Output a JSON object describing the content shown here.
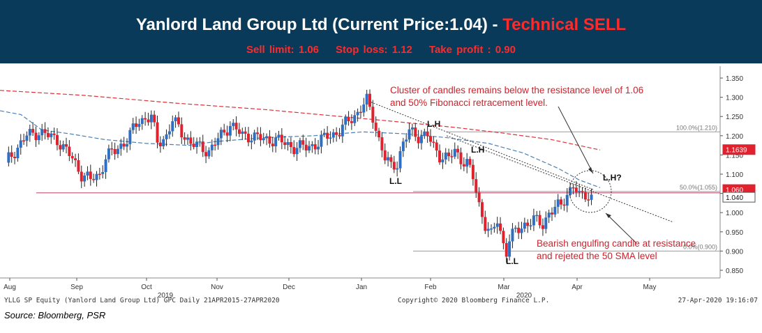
{
  "header": {
    "title_prefix": "Yanlord Land Group Ltd (Current Price:1.04) - ",
    "title_signal": "Technical SELL",
    "sell_limit": "Sell limit: 1.06",
    "stop_loss": "Stop loss: 1.12",
    "take_profit": "Take profit : 0.90"
  },
  "source": "Source: Bloomberg, PSR",
  "colors": {
    "header_bg": "#0a3a5a",
    "signal_red": "#ff2a2a",
    "up_candle": "#2e6fc4",
    "down_candle": "#e0212e",
    "sma_50": "#4a7fb5",
    "sma_200": "#e0303a",
    "annotation": "#d0202a"
  },
  "chart_data": {
    "type": "candlestick",
    "ylim": [
      0.83,
      1.37
    ],
    "yticks": [
      "1.350",
      "1.300",
      "1.250",
      "1.200",
      "1.150",
      "1.100",
      "1.050",
      "1.000",
      "0.950",
      "0.900",
      "0.850"
    ],
    "x_tick_labels": [
      "Aug",
      "Sep",
      "Oct",
      "Nov",
      "Dec",
      "Jan",
      "Feb",
      "Mar",
      "Apr",
      "May"
    ],
    "year_labels": [
      "2019",
      "2020"
    ],
    "price_boxes": [
      {
        "label": "1.1639",
        "value": 1.1639,
        "color": "#e0212e"
      },
      {
        "label": "1.060",
        "value": 1.06,
        "color": "#e0212e"
      },
      {
        "label": "1.040",
        "value": 1.04,
        "color": "#ffffff"
      }
    ],
    "fib_levels": [
      {
        "label": "100.0%(1.210)",
        "value": 1.21
      },
      {
        "label": "50.0%(1.055)",
        "value": 1.055
      },
      {
        "label": "0.0%(0.900)",
        "value": 0.9
      }
    ],
    "support_level": 1.055,
    "annotations": [
      {
        "text": "Cluster of candles remains below the resistance level of 1.06"
      },
      {
        "text": "and 50% Fibonacci retracement level."
      },
      {
        "text": "Bearish engulfing candle at resistance"
      },
      {
        "text": "and rejeted the 50 SMA level"
      }
    ],
    "pattern_labels": [
      "L.H",
      "L.H",
      "L.H?",
      "L.L",
      "L.L"
    ],
    "footer": {
      "left": "YLLG SP Equity (Yanlord Land Group Ltd) GPC  Daily 21APR2015-27APR2020",
      "center": "Copyright© 2020 Bloomberg Finance L.P.",
      "right": "27-Apr-2020 19:16:07"
    },
    "price_path": [
      [
        0,
        1.13
      ],
      [
        7,
        1.2
      ],
      [
        11,
        1.21
      ],
      [
        17,
        1.19
      ],
      [
        22,
        1.14
      ],
      [
        25,
        1.1
      ],
      [
        28,
        1.085
      ],
      [
        31,
        1.1
      ],
      [
        33,
        1.145
      ],
      [
        36,
        1.16
      ],
      [
        40,
        1.19
      ],
      [
        44,
        1.24
      ],
      [
        48,
        1.25
      ],
      [
        50,
        1.18
      ],
      [
        53,
        1.2
      ],
      [
        55,
        1.24
      ],
      [
        58,
        1.21
      ],
      [
        61,
        1.18
      ],
      [
        64,
        1.17
      ],
      [
        67,
        1.16
      ],
      [
        71,
        1.2
      ],
      [
        74,
        1.23
      ],
      [
        78,
        1.2
      ],
      [
        81,
        1.2
      ],
      [
        85,
        1.19
      ],
      [
        89,
        1.19
      ],
      [
        92,
        1.18
      ],
      [
        95,
        1.17
      ],
      [
        99,
        1.17
      ],
      [
        103,
        1.18
      ],
      [
        106,
        1.2
      ],
      [
        110,
        1.21
      ],
      [
        113,
        1.24
      ],
      [
        116,
        1.26
      ],
      [
        119,
        1.29
      ],
      [
        121,
        1.25
      ],
      [
        123,
        1.19
      ],
      [
        125,
        1.14
      ],
      [
        127,
        1.12
      ],
      [
        129,
        1.13
      ],
      [
        131,
        1.18
      ],
      [
        133,
        1.21
      ],
      [
        136,
        1.2
      ],
      [
        139,
        1.2
      ],
      [
        141,
        1.17
      ],
      [
        143,
        1.15
      ],
      [
        146,
        1.14
      ],
      [
        148,
        1.16
      ],
      [
        150,
        1.14
      ],
      [
        152,
        1.13
      ],
      [
        154,
        1.09
      ],
      [
        156,
        1.02
      ],
      [
        158,
        0.97
      ],
      [
        160,
        0.94
      ],
      [
        162,
        0.98
      ],
      [
        164,
        0.92
      ],
      [
        165,
        0.9
      ],
      [
        166,
        0.93
      ],
      [
        168,
        0.95
      ],
      [
        171,
        0.97
      ],
      [
        174,
        0.98
      ],
      [
        177,
        0.97
      ],
      [
        179,
        1.0
      ],
      [
        181,
        1.01
      ],
      [
        183,
        1.02
      ],
      [
        185,
        1.05
      ],
      [
        187,
        1.07
      ],
      [
        189,
        1.04
      ],
      [
        191,
        1.05
      ],
      [
        193,
        1.04
      ]
    ]
  }
}
